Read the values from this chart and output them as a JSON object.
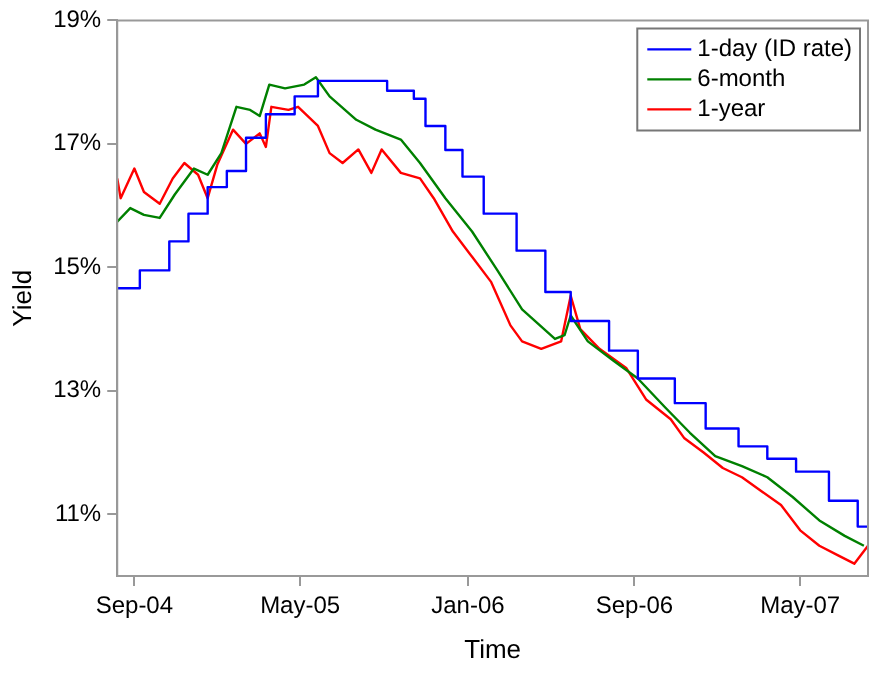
{
  "chart_data": {
    "type": "line",
    "xlabel": "Time",
    "ylabel": "Yield",
    "xlim": [
      "2004-08-07",
      "2007-08-08"
    ],
    "xticks": [
      {
        "value": "2004-09-01",
        "label": "Sep-04"
      },
      {
        "value": "2005-05-01",
        "label": "May-05"
      },
      {
        "value": "2006-01-01",
        "label": "Jan-06"
      },
      {
        "value": "2006-09-01",
        "label": "Sep-06"
      },
      {
        "value": "2007-05-01",
        "label": "May-07"
      }
    ],
    "ylim": [
      10.0,
      19
    ],
    "yticks": [
      {
        "value": 11,
        "label": "11%"
      },
      {
        "value": 13,
        "label": "13%"
      },
      {
        "value": 15,
        "label": "15%"
      },
      {
        "value": 17,
        "label": "17%"
      },
      {
        "value": 19,
        "label": "19%"
      }
    ],
    "grid": false,
    "legend": "top right",
    "marker": "none",
    "line_style": "solid",
    "series": [
      {
        "name": "1-day (ID rate)",
        "type": "step",
        "color": "#0000ff",
        "x": [
          "2004-08-07",
          "2004-09-09",
          "2004-10-22",
          "2004-11-19",
          "2004-12-17",
          "2005-01-14",
          "2005-02-11",
          "2005-03-12",
          "2005-04-23",
          "2005-05-27",
          "2005-09-05",
          "2005-10-14",
          "2005-10-31",
          "2005-11-29",
          "2005-12-24",
          "2006-01-24",
          "2006-03-13",
          "2006-04-24",
          "2006-05-31",
          "2006-07-26",
          "2006-09-06",
          "2006-10-30",
          "2006-12-14",
          "2007-01-31",
          "2007-03-14",
          "2007-04-25",
          "2007-06-12",
          "2007-07-24",
          "2007-08-08"
        ],
        "values": [
          14.66,
          14.95,
          15.42,
          15.87,
          16.3,
          16.56,
          17.1,
          17.48,
          17.77,
          18.02,
          17.86,
          17.73,
          17.29,
          16.9,
          16.47,
          15.87,
          15.27,
          14.6,
          14.13,
          13.65,
          13.2,
          12.8,
          12.39,
          12.1,
          11.9,
          11.69,
          11.22,
          10.8,
          10.8
        ]
      },
      {
        "name": "6-month",
        "color": "#008000",
        "x": [
          "2004-08-07",
          "2004-08-26",
          "2004-09-15",
          "2004-10-08",
          "2004-10-30",
          "2004-11-27",
          "2004-12-17",
          "2005-01-06",
          "2005-01-28",
          "2005-02-17",
          "2005-03-03",
          "2005-03-17",
          "2005-04-09",
          "2005-05-07",
          "2005-05-24",
          "2005-06-13",
          "2005-07-22",
          "2005-08-19",
          "2005-09-25",
          "2005-10-23",
          "2005-11-29",
          "2006-01-07",
          "2006-02-13",
          "2006-03-21",
          "2006-05-08",
          "2006-05-22",
          "2006-05-31",
          "2006-06-25",
          "2006-08-01",
          "2006-09-06",
          "2006-10-16",
          "2006-11-21",
          "2006-12-28",
          "2007-02-05",
          "2007-03-14",
          "2007-04-20",
          "2007-05-29",
          "2007-07-05",
          "2007-08-02"
        ],
        "values": [
          15.74,
          15.96,
          15.85,
          15.8,
          16.18,
          16.6,
          16.5,
          16.85,
          17.6,
          17.55,
          17.45,
          17.96,
          17.9,
          17.96,
          18.08,
          17.77,
          17.39,
          17.23,
          17.07,
          16.69,
          16.12,
          15.58,
          14.95,
          14.32,
          13.84,
          13.9,
          14.22,
          13.8,
          13.49,
          13.2,
          12.73,
          12.32,
          11.94,
          11.78,
          11.6,
          11.28,
          10.9,
          10.65,
          10.49
        ]
      },
      {
        "name": "1-year",
        "color": "#ff0000",
        "x": [
          "2004-08-07",
          "2004-08-12",
          "2004-09-01",
          "2004-09-15",
          "2004-10-08",
          "2004-10-27",
          "2004-11-13",
          "2004-12-03",
          "2004-12-17",
          "2004-12-31",
          "2005-01-23",
          "2005-02-11",
          "2005-03-03",
          "2005-03-12",
          "2005-03-20",
          "2005-04-14",
          "2005-04-28",
          "2005-05-27",
          "2005-06-13",
          "2005-07-02",
          "2005-07-25",
          "2005-08-13",
          "2005-08-28",
          "2005-09-25",
          "2005-10-23",
          "2005-11-12",
          "2005-12-10",
          "2006-01-07",
          "2006-02-04",
          "2006-03-04",
          "2006-03-21",
          "2006-04-18",
          "2006-05-17",
          "2006-05-31",
          "2006-06-14",
          "2006-07-12",
          "2006-08-20",
          "2006-09-18",
          "2006-10-24",
          "2006-11-13",
          "2006-12-11",
          "2007-01-08",
          "2007-02-05",
          "2007-03-06",
          "2007-04-03",
          "2007-05-01",
          "2007-05-29",
          "2007-06-26",
          "2007-07-19",
          "2007-08-08"
        ],
        "values": [
          16.44,
          16.12,
          16.6,
          16.22,
          16.03,
          16.44,
          16.69,
          16.5,
          16.12,
          16.66,
          17.23,
          17.0,
          17.17,
          16.95,
          17.6,
          17.55,
          17.6,
          17.29,
          16.85,
          16.69,
          16.91,
          16.53,
          16.91,
          16.53,
          16.44,
          16.12,
          15.58,
          15.17,
          14.76,
          14.06,
          13.8,
          13.68,
          13.8,
          14.54,
          14.0,
          13.68,
          13.37,
          12.86,
          12.54,
          12.23,
          12.0,
          11.75,
          11.6,
          11.37,
          11.15,
          10.74,
          10.49,
          10.33,
          10.2,
          10.49
        ]
      }
    ]
  }
}
